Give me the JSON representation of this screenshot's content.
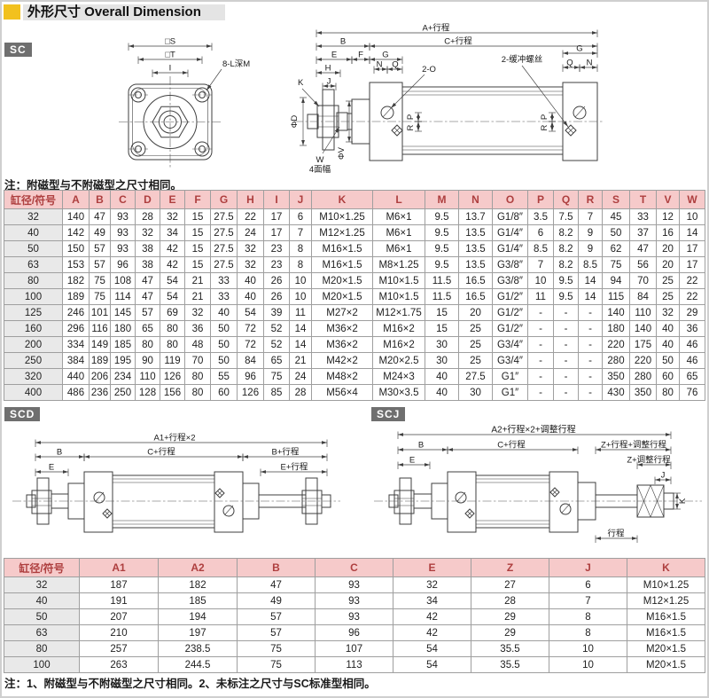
{
  "page": {
    "title": "外形尺寸 Overall Dimension"
  },
  "badges": {
    "sc": "SC",
    "scd": "SCD",
    "scj": "SCJ"
  },
  "notes": {
    "sc_table": "注：附磁型与不附磁型之尺寸相同。",
    "bottom": "注：1、附磁型与不附磁型之尺寸相同。2、未标注之尺寸与SC标准型相同。"
  },
  "colors": {
    "accent_yellow": "#f2c11e",
    "title_bar_gray": "#e4e4e4",
    "badge_gray": "#6f6f6f",
    "table_header_bg": "#f6caca",
    "table_header_text": "#ae3f3f",
    "row_label_bg": "#e9e9e9",
    "table_border": "#9f9f9f",
    "drawing_line": "#3f3f3f"
  },
  "diagrams": {
    "sc_front": {
      "s": "□S",
      "t": "□T",
      "i": "I",
      "holes": "8-L深M"
    },
    "sc_side": {
      "a": "A+行程",
      "b": "B",
      "c": "C+行程",
      "e": "E",
      "f": "F",
      "g": "G",
      "h": "H",
      "j": "J",
      "k": "K",
      "n": "N",
      "q": "Q",
      "p": "P",
      "r": "R",
      "o": "2-O",
      "cushion": "2-缓冲螺丝",
      "d": "ΦD",
      "v": "ΦV",
      "w": "W",
      "w_note": "4面幅"
    },
    "scd": {
      "a1": "A1+行程×2",
      "b": "B",
      "c": "C+行程",
      "b_stroke": "B+行程",
      "e": "E",
      "e_stroke": "E+行程"
    },
    "scj": {
      "a2": "A2+行程×2+调整行程",
      "b": "B",
      "c": "C+行程",
      "z_stroke": "Z+行程+调整行程",
      "e": "E",
      "z_adj": "Z+调整行程",
      "j": "J",
      "k": "K",
      "stroke": "行程"
    }
  },
  "table1": {
    "headers": [
      "缸径/符号",
      "A",
      "B",
      "C",
      "D",
      "E",
      "F",
      "G",
      "H",
      "I",
      "J",
      "K",
      "L",
      "M",
      "N",
      "O",
      "P",
      "Q",
      "R",
      "S",
      "T",
      "V",
      "W"
    ],
    "rows": [
      [
        "32",
        "140",
        "47",
        "93",
        "28",
        "32",
        "15",
        "27.5",
        "22",
        "17",
        "6",
        "M10×1.25",
        "M6×1",
        "9.5",
        "13.7",
        "G1/8″",
        "3.5",
        "7.5",
        "7",
        "45",
        "33",
        "12",
        "10"
      ],
      [
        "40",
        "142",
        "49",
        "93",
        "32",
        "34",
        "15",
        "27.5",
        "24",
        "17",
        "7",
        "M12×1.25",
        "M6×1",
        "9.5",
        "13.5",
        "G1/4″",
        "6",
        "8.2",
        "9",
        "50",
        "37",
        "16",
        "14"
      ],
      [
        "50",
        "150",
        "57",
        "93",
        "38",
        "42",
        "15",
        "27.5",
        "32",
        "23",
        "8",
        "M16×1.5",
        "M6×1",
        "9.5",
        "13.5",
        "G1/4″",
        "8.5",
        "8.2",
        "9",
        "62",
        "47",
        "20",
        "17"
      ],
      [
        "63",
        "153",
        "57",
        "96",
        "38",
        "42",
        "15",
        "27.5",
        "32",
        "23",
        "8",
        "M16×1.5",
        "M8×1.25",
        "9.5",
        "13.5",
        "G3/8″",
        "7",
        "8.2",
        "8.5",
        "75",
        "56",
        "20",
        "17"
      ],
      [
        "80",
        "182",
        "75",
        "108",
        "47",
        "54",
        "21",
        "33",
        "40",
        "26",
        "10",
        "M20×1.5",
        "M10×1.5",
        "11.5",
        "16.5",
        "G3/8″",
        "10",
        "9.5",
        "14",
        "94",
        "70",
        "25",
        "22"
      ],
      [
        "100",
        "189",
        "75",
        "114",
        "47",
        "54",
        "21",
        "33",
        "40",
        "26",
        "10",
        "M20×1.5",
        "M10×1.5",
        "11.5",
        "16.5",
        "G1/2″",
        "11",
        "9.5",
        "14",
        "115",
        "84",
        "25",
        "22"
      ],
      [
        "125",
        "246",
        "101",
        "145",
        "57",
        "69",
        "32",
        "40",
        "54",
        "39",
        "11",
        "M27×2",
        "M12×1.75",
        "15",
        "20",
        "G1/2″",
        "-",
        "-",
        "-",
        "140",
        "110",
        "32",
        "29"
      ],
      [
        "160",
        "296",
        "116",
        "180",
        "65",
        "80",
        "36",
        "50",
        "72",
        "52",
        "14",
        "M36×2",
        "M16×2",
        "15",
        "25",
        "G1/2″",
        "-",
        "-",
        "-",
        "180",
        "140",
        "40",
        "36"
      ],
      [
        "200",
        "334",
        "149",
        "185",
        "80",
        "80",
        "48",
        "50",
        "72",
        "52",
        "14",
        "M36×2",
        "M16×2",
        "30",
        "25",
        "G3/4″",
        "-",
        "-",
        "-",
        "220",
        "175",
        "40",
        "46"
      ],
      [
        "250",
        "384",
        "189",
        "195",
        "90",
        "119",
        "70",
        "50",
        "84",
        "65",
        "21",
        "M42×2",
        "M20×2.5",
        "30",
        "25",
        "G3/4″",
        "-",
        "-",
        "-",
        "280",
        "220",
        "50",
        "46"
      ],
      [
        "320",
        "440",
        "206",
        "234",
        "110",
        "126",
        "80",
        "55",
        "96",
        "75",
        "24",
        "M48×2",
        "M24×3",
        "40",
        "27.5",
        "G1″",
        "-",
        "-",
        "-",
        "350",
        "280",
        "60",
        "65"
      ],
      [
        "400",
        "486",
        "236",
        "250",
        "128",
        "156",
        "80",
        "60",
        "126",
        "85",
        "28",
        "M56×4",
        "M30×3.5",
        "40",
        "30",
        "G1″",
        "-",
        "-",
        "-",
        "430",
        "350",
        "80",
        "76"
      ]
    ]
  },
  "table2": {
    "headers": [
      "缸径/符号",
      "A1",
      "A2",
      "B",
      "C",
      "E",
      "Z",
      "J",
      "K"
    ],
    "rows": [
      [
        "32",
        "187",
        "182",
        "47",
        "93",
        "32",
        "27",
        "6",
        "M10×1.25"
      ],
      [
        "40",
        "191",
        "185",
        "49",
        "93",
        "34",
        "28",
        "7",
        "M12×1.25"
      ],
      [
        "50",
        "207",
        "194",
        "57",
        "93",
        "42",
        "29",
        "8",
        "M16×1.5"
      ],
      [
        "63",
        "210",
        "197",
        "57",
        "96",
        "42",
        "29",
        "8",
        "M16×1.5"
      ],
      [
        "80",
        "257",
        "238.5",
        "75",
        "107",
        "54",
        "35.5",
        "10",
        "M20×1.5"
      ],
      [
        "100",
        "263",
        "244.5",
        "75",
        "113",
        "54",
        "35.5",
        "10",
        "M20×1.5"
      ]
    ]
  }
}
